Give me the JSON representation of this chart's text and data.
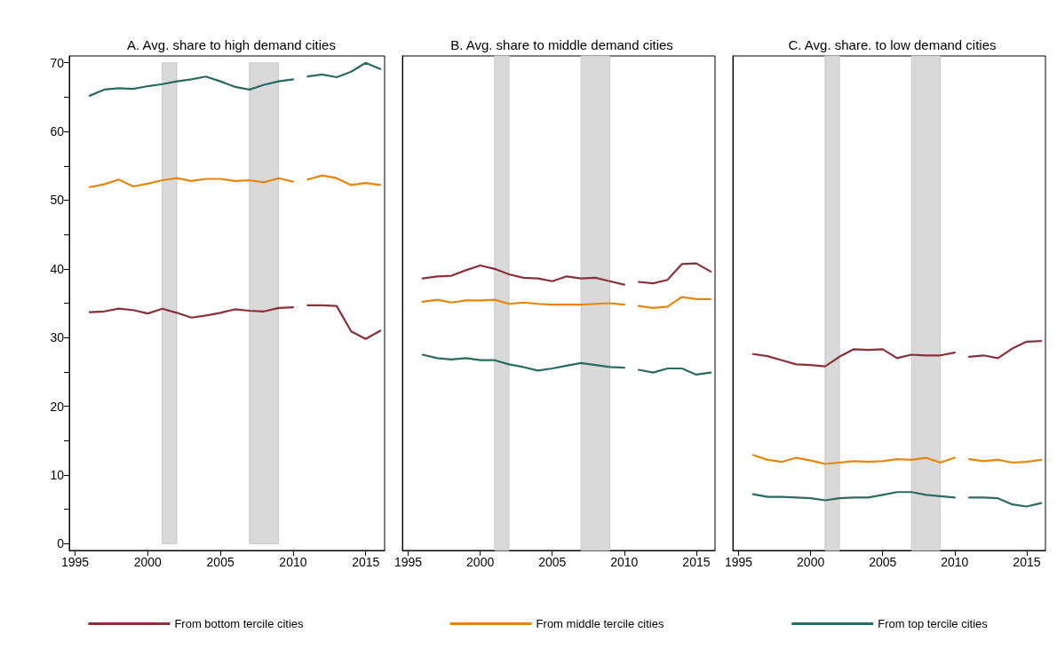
{
  "chart_data": [
    {
      "type": "line",
      "title": "A. Avg. share to high demand cities",
      "x": [
        1996,
        1997,
        1998,
        1999,
        2000,
        2001,
        2002,
        2003,
        2004,
        2005,
        2006,
        2007,
        2008,
        2009,
        2010,
        2010.5,
        2011,
        2012,
        2013,
        2014,
        2015,
        2016
      ],
      "series": [
        {
          "name": "From bottom tercile cities",
          "color": "#8b2f3a",
          "values": [
            33.7,
            33.8,
            34.2,
            34.0,
            33.5,
            34.2,
            33.6,
            32.9,
            33.2,
            33.6,
            34.1,
            33.9,
            33.8,
            34.3,
            34.4,
            null,
            34.7,
            34.7,
            34.6,
            30.9,
            29.8,
            31.0
          ]
        },
        {
          "color": "#e8850c",
          "values": [
            51.9,
            52.3,
            53.0,
            52.0,
            52.4,
            52.9,
            53.2,
            52.8,
            53.1,
            53.1,
            52.8,
            52.9,
            52.6,
            53.2,
            52.7,
            null,
            53.0,
            53.6,
            53.2,
            52.2,
            52.5,
            52.2
          ]
        },
        {
          "color": "#2b6a5f",
          "values": [
            65.2,
            66.1,
            66.3,
            66.2,
            66.6,
            66.9,
            67.3,
            67.6,
            68.0,
            67.3,
            66.5,
            66.1,
            66.8,
            67.3,
            67.6,
            null,
            68.0,
            68.3,
            67.9,
            68.7,
            70.0,
            69.1
          ]
        }
      ],
      "xlim": [
        1994.6,
        2016.3
      ],
      "xticks": [
        1995,
        2000,
        2005,
        2010,
        2015
      ],
      "ylim": [
        -1,
        71
      ],
      "yticks": [
        0,
        {
          "value": 5,
          "label": null
        },
        10,
        {
          "value": 15,
          "label": null
        },
        20,
        {
          "value": 25,
          "label": null
        },
        30,
        {
          "value": 35,
          "label": null
        },
        40,
        {
          "value": 45,
          "label": null
        },
        50,
        {
          "value": 55,
          "label": null
        },
        60,
        {
          "value": 65,
          "label": null
        },
        70
      ],
      "bands": [
        {
          "axis": "x",
          "from": 2001,
          "to": 2002,
          "color": "#d9d9d9"
        },
        {
          "axis": "x",
          "from": 2007,
          "to": 2009,
          "color": "#d9d9d9"
        }
      ],
      "grid": false,
      "legend": "bottom",
      "marker": "none",
      "line_style": "solid"
    },
    {
      "type": "line",
      "title": "B. Avg. share to middle demand cities",
      "x": [
        1996,
        1997,
        1998,
        1999,
        2000,
        2001,
        2002,
        2003,
        2004,
        2005,
        2006,
        2007,
        2008,
        2009,
        2010,
        2010.5,
        2011,
        2012,
        2013,
        2014,
        2015,
        2016
      ],
      "series": [
        {
          "color": "#8b2f3a",
          "values": [
            38.6,
            38.9,
            39.0,
            39.8,
            40.5,
            40.0,
            39.2,
            38.7,
            38.6,
            38.2,
            38.9,
            38.6,
            38.7,
            38.2,
            37.7,
            null,
            38.1,
            37.9,
            38.4,
            40.7,
            40.8,
            39.6
          ]
        },
        {
          "name": "From middle tercile cities",
          "color": "#e8850c",
          "values": [
            35.2,
            35.5,
            35.1,
            35.4,
            35.4,
            35.5,
            34.9,
            35.1,
            34.9,
            34.8,
            34.8,
            34.8,
            34.9,
            35.0,
            34.8,
            null,
            34.6,
            34.3,
            34.5,
            35.9,
            35.6,
            35.6
          ]
        },
        {
          "color": "#2b6a5f",
          "values": [
            27.5,
            27.0,
            26.8,
            27.0,
            26.7,
            26.7,
            26.1,
            25.7,
            25.2,
            25.5,
            25.9,
            26.3,
            26.0,
            25.7,
            25.6,
            null,
            25.3,
            24.9,
            25.5,
            25.5,
            24.6,
            24.9
          ]
        }
      ],
      "xlim": [
        1994.6,
        2016.3
      ],
      "xticks": [
        1995,
        2000,
        2005,
        2010,
        2015
      ],
      "ylim": [
        -1,
        71
      ],
      "tick_labels": "x",
      "bands": [
        {
          "axis": "x",
          "from": 2001,
          "to": 2002,
          "color": "#d9d9d9"
        },
        {
          "axis": "x",
          "from": 2007,
          "to": 2009,
          "color": "#d9d9d9"
        }
      ],
      "grid": false,
      "legend": "bottom",
      "marker": "none",
      "line_style": "solid"
    },
    {
      "type": "line",
      "title": "C. Avg. share. to low demand cities",
      "x": [
        1996,
        1997,
        1998,
        1999,
        2000,
        2001,
        2002,
        2003,
        2004,
        2005,
        2006,
        2007,
        2008,
        2009,
        2010,
        2010.5,
        2011,
        2012,
        2013,
        2014,
        2015,
        2016
      ],
      "series": [
        {
          "color": "#8b2f3a",
          "values": [
            27.6,
            27.3,
            26.7,
            26.1,
            26.0,
            25.8,
            27.2,
            28.3,
            28.2,
            28.3,
            27.0,
            27.5,
            27.4,
            27.4,
            27.8,
            null,
            27.2,
            27.4,
            27.0,
            28.4,
            29.4,
            29.5
          ]
        },
        {
          "color": "#e8850c",
          "values": [
            12.9,
            12.2,
            11.9,
            12.5,
            12.1,
            11.6,
            11.8,
            12.0,
            11.9,
            12.0,
            12.3,
            12.2,
            12.5,
            11.8,
            12.5,
            null,
            12.3,
            12.0,
            12.2,
            11.8,
            11.9,
            12.2
          ]
        },
        {
          "name": "From top tercile cities",
          "color": "#2b6a5f",
          "values": [
            7.2,
            6.8,
            6.8,
            6.7,
            6.6,
            6.3,
            6.6,
            6.7,
            6.7,
            7.1,
            7.5,
            7.5,
            7.1,
            6.9,
            6.7,
            null,
            6.7,
            6.7,
            6.6,
            5.7,
            5.4,
            5.9
          ]
        }
      ],
      "xlim": [
        1994.6,
        2016.3
      ],
      "xticks": [
        1995,
        2000,
        2005,
        2010,
        2015
      ],
      "ylim": [
        -1,
        71
      ],
      "tick_labels": "x",
      "bands": [
        {
          "axis": "x",
          "from": 2001,
          "to": 2002,
          "color": "#d9d9d9"
        },
        {
          "axis": "x",
          "from": 2007,
          "to": 2009,
          "color": "#d9d9d9"
        }
      ],
      "grid": false,
      "legend": "bottom",
      "marker": "none",
      "line_style": "solid"
    }
  ]
}
